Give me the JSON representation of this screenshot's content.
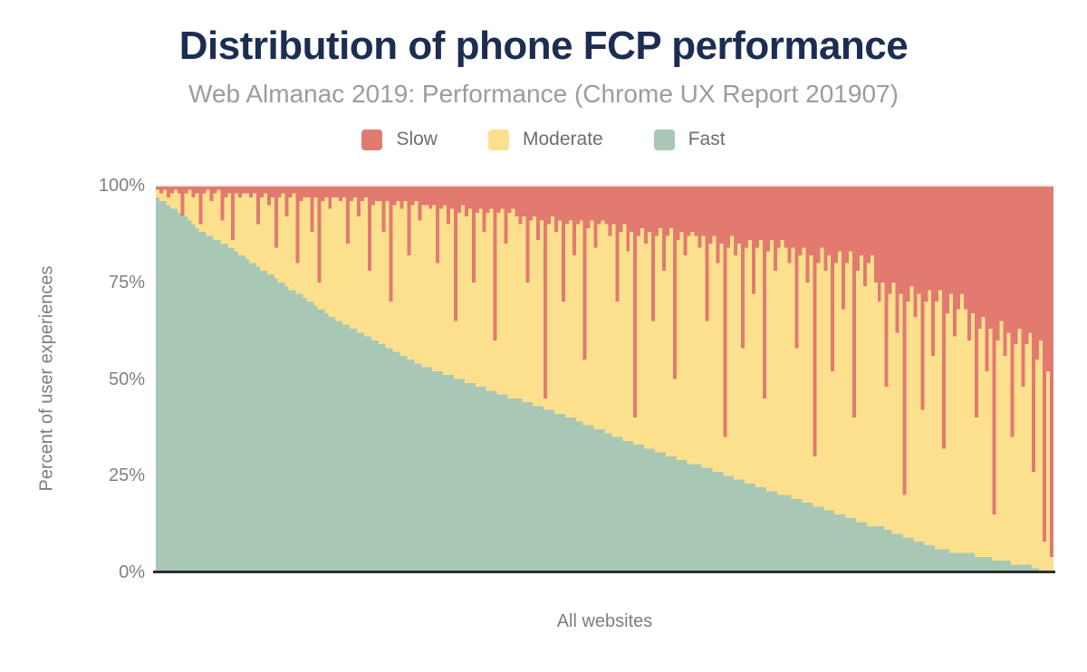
{
  "figure": {
    "title": "Distribution of phone FCP performance",
    "subtitle": "Web Almanac 2019: Performance (Chrome UX Report 201907)",
    "y_axis_label": "Percent of user experiences",
    "x_axis_label": "All websites",
    "y_ticks": [
      "100%",
      "75%",
      "50%",
      "25%",
      "0%"
    ]
  },
  "legend": {
    "items": [
      {
        "label": "Slow",
        "color": "#e27a70"
      },
      {
        "label": "Moderate",
        "color": "#fde08d"
      },
      {
        "label": "Fast",
        "color": "#a8c8b5"
      }
    ]
  },
  "colors": {
    "title": "#1c2d51",
    "subtitle": "#9c9c9c",
    "axis_text": "#7e7e7e",
    "tick_text": "#808080",
    "axis_line": "#2e2e2e",
    "gridline": "#e9e9e9",
    "background": "#ffffff"
  },
  "chart_data": {
    "type": "bar",
    "stacked": true,
    "normalized_percent": true,
    "title": "Distribution of phone FCP performance",
    "subtitle": "Web Almanac 2019: Performance (Chrome UX Report 201907)",
    "xlabel": "All websites",
    "ylabel": "Percent of user experiences",
    "ylim": [
      0,
      100
    ],
    "y_tick_values": [
      0,
      25,
      50,
      75,
      100
    ],
    "legend_position": "top",
    "grid": "top-line-only",
    "x_count": 250,
    "x_description": "Individual websites (no tick labels), sorted by descending share of fast FCP experiences; values estimated from pixels",
    "series": [
      {
        "name": "Fast",
        "color": "#a8c8b5",
        "stack_position": "bottom",
        "values": [
          97,
          96,
          96,
          95,
          94,
          94,
          93,
          92,
          92,
          91,
          90,
          89,
          88,
          88,
          87,
          87,
          86,
          86,
          85,
          85,
          84,
          84,
          83,
          82,
          82,
          81,
          80,
          80,
          79,
          78,
          78,
          77,
          77,
          76,
          75,
          75,
          74,
          73,
          73,
          72,
          72,
          71,
          70,
          70,
          69,
          68,
          68,
          67,
          66,
          66,
          65,
          65,
          64,
          64,
          63,
          63,
          62,
          62,
          61,
          61,
          60,
          60,
          59,
          59,
          58,
          58,
          57,
          57,
          56,
          56,
          55,
          55,
          54,
          54,
          53,
          53,
          53,
          52,
          52,
          52,
          51,
          51,
          51,
          50,
          50,
          50,
          49,
          49,
          49,
          48,
          48,
          48,
          47,
          47,
          47,
          46,
          46,
          46,
          45,
          45,
          45,
          45,
          44,
          44,
          44,
          43,
          43,
          43,
          42,
          42,
          42,
          41,
          41,
          41,
          40,
          40,
          40,
          39,
          39,
          38,
          38,
          38,
          37,
          37,
          37,
          36,
          36,
          35,
          35,
          35,
          34,
          34,
          34,
          33,
          33,
          33,
          32,
          32,
          32,
          31,
          31,
          31,
          30,
          30,
          30,
          29,
          29,
          29,
          28,
          28,
          28,
          28,
          27,
          27,
          27,
          26,
          26,
          26,
          25,
          25,
          25,
          24,
          24,
          24,
          23,
          23,
          23,
          22,
          22,
          22,
          21,
          21,
          21,
          20,
          20,
          20,
          20,
          19,
          19,
          19,
          18,
          18,
          18,
          17,
          17,
          17,
          16,
          16,
          16,
          15,
          15,
          15,
          14,
          14,
          14,
          13,
          13,
          13,
          12,
          12,
          12,
          12,
          12,
          11,
          11,
          10,
          10,
          10,
          9,
          9,
          9,
          8,
          8,
          8,
          7,
          7,
          7,
          6,
          6,
          6,
          6,
          5,
          5,
          5,
          5,
          5,
          5,
          5,
          4,
          4,
          4,
          4,
          4,
          3,
          3,
          3,
          3,
          3,
          2,
          2,
          2,
          2,
          2,
          2,
          1,
          1,
          0,
          0,
          0,
          0
        ]
      },
      {
        "name": "Moderate",
        "color": "#fde08d",
        "stack_position": "middle",
        "values_rule": "100 minus Fast minus Slow (chart is 100% stacked)"
      },
      {
        "name": "Slow",
        "color": "#e27a70",
        "stack_position": "top",
        "values": [
          1,
          2,
          1,
          3,
          2,
          1,
          2,
          8,
          2,
          1,
          3,
          2,
          10,
          2,
          1,
          4,
          2,
          1,
          9,
          3,
          2,
          14,
          2,
          3,
          2,
          2,
          3,
          2,
          10,
          3,
          2,
          5,
          3,
          16,
          3,
          2,
          8,
          3,
          2,
          20,
          4,
          3,
          3,
          12,
          3,
          25,
          4,
          3,
          6,
          3,
          3,
          4,
          3,
          15,
          4,
          3,
          8,
          4,
          3,
          22,
          5,
          4,
          4,
          12,
          4,
          30,
          5,
          4,
          6,
          4,
          18,
          5,
          4,
          9,
          5,
          5,
          6,
          5,
          20,
          6,
          5,
          10,
          6,
          35,
          7,
          5,
          8,
          6,
          25,
          7,
          6,
          12,
          7,
          6,
          40,
          7,
          6,
          15,
          7,
          6,
          8,
          10,
          8,
          25,
          9,
          8,
          14,
          9,
          55,
          10,
          8,
          12,
          9,
          30,
          10,
          9,
          18,
          10,
          9,
          45,
          11,
          9,
          16,
          10,
          9,
          10,
          13,
          10,
          30,
          12,
          10,
          17,
          12,
          60,
          13,
          11,
          15,
          12,
          35,
          13,
          11,
          22,
          13,
          11,
          50,
          14,
          12,
          18,
          13,
          12,
          13,
          16,
          13,
          35,
          15,
          13,
          20,
          15,
          65,
          16,
          13,
          18,
          15,
          42,
          16,
          14,
          28,
          16,
          14,
          55,
          17,
          14,
          22,
          16,
          14,
          16,
          20,
          16,
          42,
          18,
          16,
          25,
          18,
          70,
          20,
          16,
          22,
          18,
          48,
          20,
          17,
          32,
          20,
          17,
          60,
          22,
          18,
          26,
          20,
          18,
          25,
          30,
          25,
          52,
          28,
          25,
          38,
          28,
          80,
          30,
          26,
          34,
          28,
          58,
          30,
          27,
          44,
          30,
          27,
          68,
          33,
          28,
          39,
          32,
          28,
          32,
          40,
          33,
          60,
          37,
          34,
          48,
          37,
          85,
          40,
          35,
          44,
          38,
          65,
          41,
          37,
          52,
          41,
          38,
          74,
          45,
          40,
          92,
          48,
          96
        ]
      }
    ]
  }
}
